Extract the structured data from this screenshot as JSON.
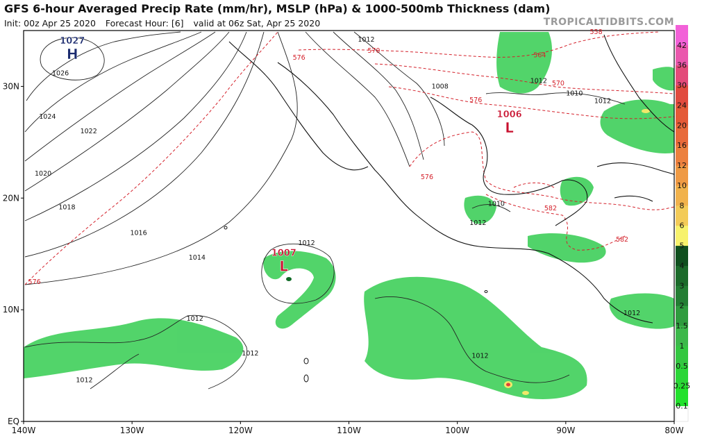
{
  "header": {
    "title": "GFS 6-hour Averaged Precip Rate (mm/hr), MSLP (hPa) & 1000-500mb Thickness (dam)",
    "init": "Init: 00z Apr 25 2020",
    "forecast_hour": "Forecast Hour: [6]",
    "valid": "valid at 06z Sat, Apr 25 2020",
    "brand": "TROPICALTIDBITS.COM"
  },
  "map": {
    "lon_range": [
      -140,
      -80
    ],
    "lat_range": [
      0,
      35
    ],
    "lon_ticks": [
      {
        "lon": -140,
        "label": "140W"
      },
      {
        "lon": -130,
        "label": "130W"
      },
      {
        "lon": -120,
        "label": "120W"
      },
      {
        "lon": -110,
        "label": "110W"
      },
      {
        "lon": -100,
        "label": "100W"
      },
      {
        "lon": -90,
        "label": "90W"
      },
      {
        "lon": -80,
        "label": "80W"
      }
    ],
    "lat_ticks": [
      {
        "lat": 0,
        "label": "EQ"
      },
      {
        "lat": 10,
        "label": "10N"
      },
      {
        "lat": 20,
        "label": "20N"
      },
      {
        "lat": 30,
        "label": "30N"
      }
    ],
    "pressure_centers": [
      {
        "type": "H",
        "value": "1027",
        "lon": -135.5,
        "lat": 32.7,
        "color": "#1a2a6e"
      },
      {
        "type": "L",
        "value": "1006",
        "lon": -95.2,
        "lat": 26.1,
        "color": "#c8102e"
      },
      {
        "type": "L",
        "value": "1007",
        "lon": -116.0,
        "lat": 13.7,
        "color": "#c8102e"
      }
    ],
    "isobar_labels": [
      {
        "text": "1026",
        "lon": -136.6,
        "lat": 31.0
      },
      {
        "text": "1024",
        "lon": -137.8,
        "lat": 27.1
      },
      {
        "text": "1022",
        "lon": -134.0,
        "lat": 25.8
      },
      {
        "text": "1020",
        "lon": -138.2,
        "lat": 22.0
      },
      {
        "text": "1018",
        "lon": -136.0,
        "lat": 19.0
      },
      {
        "text": "1016",
        "lon": -129.4,
        "lat": 16.7
      },
      {
        "text": "1014",
        "lon": -124.0,
        "lat": 14.5
      },
      {
        "text": "1012",
        "lon": -113.9,
        "lat": 15.8
      },
      {
        "text": "1012",
        "lon": -124.2,
        "lat": 9.0
      },
      {
        "text": "1012",
        "lon": -119.1,
        "lat": 5.9
      },
      {
        "text": "1012",
        "lon": -134.4,
        "lat": 3.5
      },
      {
        "text": "1012",
        "lon": -97.9,
        "lat": 5.7
      },
      {
        "text": "1012",
        "lon": -98.1,
        "lat": 17.6
      },
      {
        "text": "1010",
        "lon": -96.4,
        "lat": 19.3
      },
      {
        "text": "1012",
        "lon": -108.4,
        "lat": 34.0
      },
      {
        "text": "1008",
        "lon": -101.6,
        "lat": 29.8
      },
      {
        "text": "1010",
        "lon": -89.2,
        "lat": 29.2
      },
      {
        "text": "1012",
        "lon": -92.5,
        "lat": 30.3
      },
      {
        "text": "1012",
        "lon": -86.6,
        "lat": 28.5
      },
      {
        "text": "1012",
        "lon": -83.9,
        "lat": 9.5
      }
    ],
    "thickness_labels": [
      {
        "text": "576",
        "lon": -114.6,
        "lat": 32.4
      },
      {
        "text": "570",
        "lon": -107.7,
        "lat": 33.0
      },
      {
        "text": "564",
        "lon": -92.4,
        "lat": 32.6
      },
      {
        "text": "558",
        "lon": -87.2,
        "lat": 34.7
      },
      {
        "text": "570",
        "lon": -90.7,
        "lat": 30.1
      },
      {
        "text": "576",
        "lon": -98.3,
        "lat": 28.6
      },
      {
        "text": "576",
        "lon": -102.8,
        "lat": 21.7
      },
      {
        "text": "576",
        "lon": -139.0,
        "lat": 12.3
      },
      {
        "text": "582",
        "lon": -91.4,
        "lat": 18.9
      },
      {
        "text": "582",
        "lon": -84.8,
        "lat": 16.1
      }
    ]
  },
  "colorbar": {
    "colors": {
      "light_green": "#b9f2ad",
      "mid_green": "#3fcf5a",
      "dark_green": "#0f6b26",
      "yellow": "#f1e86a",
      "orange": "#f09a45",
      "red": "#e0403a",
      "pink": "#f24fc8"
    },
    "labels": [
      "0.1",
      "0.25",
      "0.5",
      "1",
      "1.5",
      "2",
      "3",
      "4",
      "5",
      "6",
      "8",
      "10",
      "12",
      "16",
      "20",
      "24",
      "30",
      "36",
      "42"
    ],
    "label_colors": [
      "#22e12c",
      "#2ad637",
      "#33c740",
      "#3cb84a",
      "#2f9c3e",
      "#237e33",
      "#1b6a2a",
      "#0f4f1e",
      "#f7f26c",
      "#f3cb58",
      "#f1b24c",
      "#ef9a44",
      "#ec803e",
      "#e86a3a",
      "#e45a37",
      "#e14b3e",
      "#e34b7a",
      "#ea58ad",
      "#f261d8"
    ]
  }
}
